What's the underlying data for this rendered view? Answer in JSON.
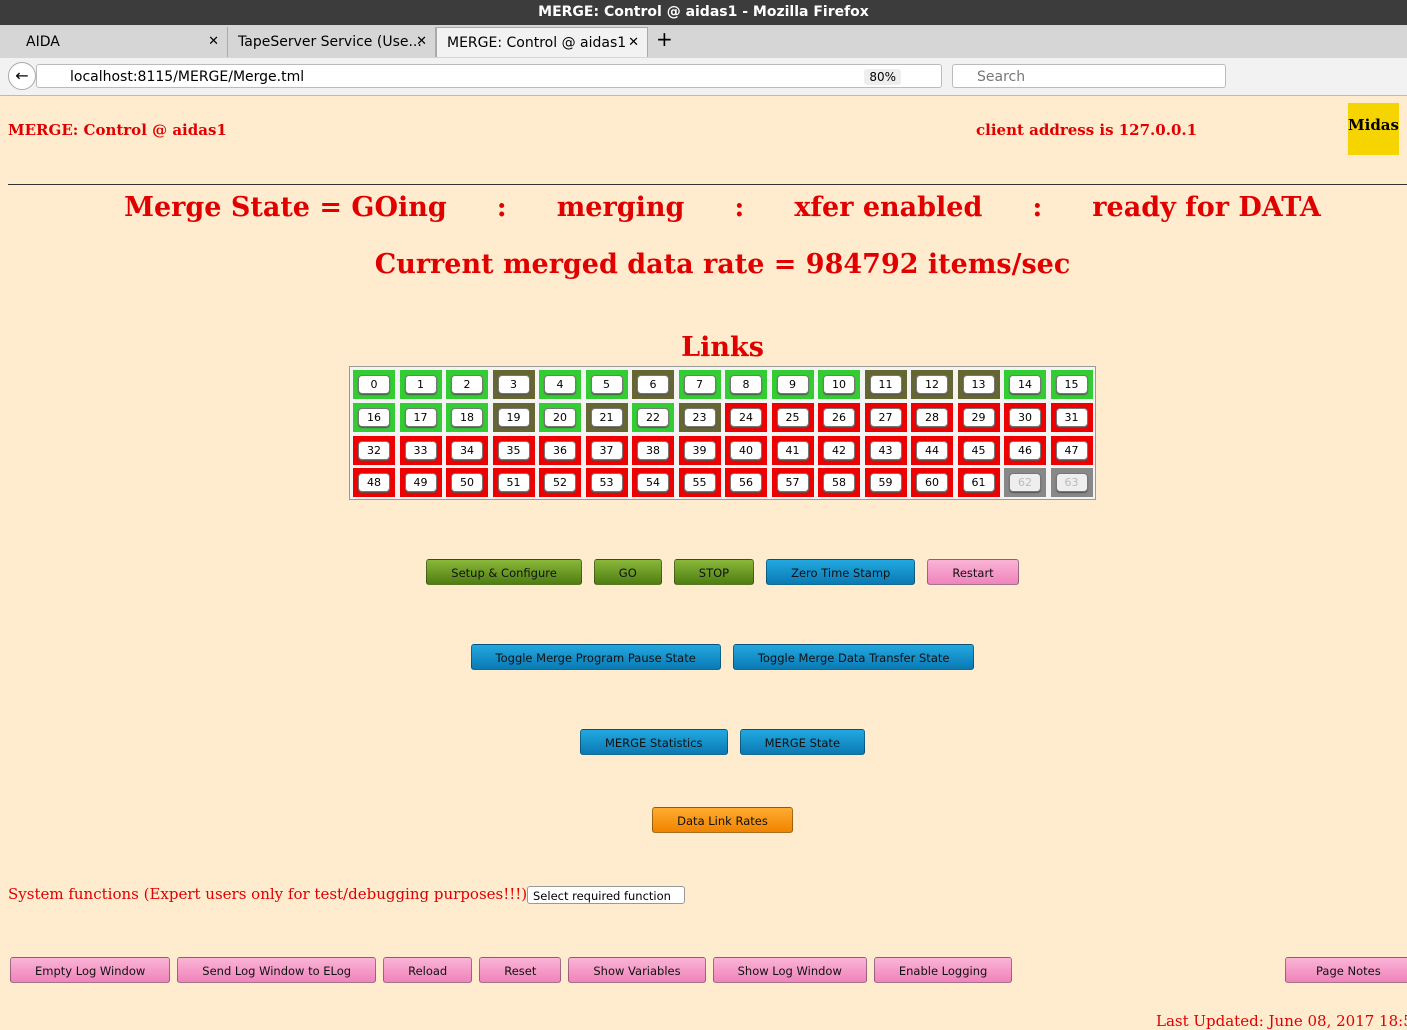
{
  "browser": {
    "window_title": "MERGE: Control @ aidas1 - Mozilla Firefox",
    "tabs": [
      "AIDA",
      "TapeServer Service (Use...",
      "MERGE: Control @ aidas1"
    ],
    "url": "localhost:8115/MERGE/Merge.tml",
    "zoom": "80%",
    "search": "Search"
  },
  "page": {
    "header_title": "MERGE: Control @ aidas1",
    "client_address": "client address is 127.0.0.1",
    "logo": "Midas",
    "state_parts": [
      "Merge State = GOing",
      ":",
      "merging",
      ":",
      "xfer enabled",
      ":",
      "ready for DATA"
    ],
    "rate": "Current merged data rate = 984792 items/sec",
    "links_title": "Links",
    "links": [
      {
        "label": "0",
        "color": "green"
      },
      {
        "label": "1",
        "color": "green"
      },
      {
        "label": "2",
        "color": "green"
      },
      {
        "label": "3",
        "color": "olive"
      },
      {
        "label": "4",
        "color": "green"
      },
      {
        "label": "5",
        "color": "green"
      },
      {
        "label": "6",
        "color": "olive"
      },
      {
        "label": "7",
        "color": "green"
      },
      {
        "label": "8",
        "color": "green"
      },
      {
        "label": "9",
        "color": "green"
      },
      {
        "label": "10",
        "color": "green"
      },
      {
        "label": "11",
        "color": "olive"
      },
      {
        "label": "12",
        "color": "olive"
      },
      {
        "label": "13",
        "color": "olive"
      },
      {
        "label": "14",
        "color": "green"
      },
      {
        "label": "15",
        "color": "green"
      },
      {
        "label": "16",
        "color": "green"
      },
      {
        "label": "17",
        "color": "green"
      },
      {
        "label": "18",
        "color": "green"
      },
      {
        "label": "19",
        "color": "olive"
      },
      {
        "label": "20",
        "color": "green"
      },
      {
        "label": "21",
        "color": "olive"
      },
      {
        "label": "22",
        "color": "green"
      },
      {
        "label": "23",
        "color": "olive"
      },
      {
        "label": "24",
        "color": "red"
      },
      {
        "label": "25",
        "color": "red"
      },
      {
        "label": "26",
        "color": "red"
      },
      {
        "label": "27",
        "color": "red"
      },
      {
        "label": "28",
        "color": "red"
      },
      {
        "label": "29",
        "color": "red"
      },
      {
        "label": "30",
        "color": "red"
      },
      {
        "label": "31",
        "color": "red"
      },
      {
        "label": "32",
        "color": "red"
      },
      {
        "label": "33",
        "color": "red"
      },
      {
        "label": "34",
        "color": "red"
      },
      {
        "label": "35",
        "color": "red"
      },
      {
        "label": "36",
        "color": "red"
      },
      {
        "label": "37",
        "color": "red"
      },
      {
        "label": "38",
        "color": "red"
      },
      {
        "label": "39",
        "color": "red"
      },
      {
        "label": "40",
        "color": "red"
      },
      {
        "label": "41",
        "color": "red"
      },
      {
        "label": "42",
        "color": "red"
      },
      {
        "label": "43",
        "color": "red"
      },
      {
        "label": "44",
        "color": "red"
      },
      {
        "label": "45",
        "color": "red"
      },
      {
        "label": "46",
        "color": "red"
      },
      {
        "label": "47",
        "color": "red"
      },
      {
        "label": "48",
        "color": "red"
      },
      {
        "label": "49",
        "color": "red"
      },
      {
        "label": "50",
        "color": "red"
      },
      {
        "label": "51",
        "color": "red"
      },
      {
        "label": "52",
        "color": "red"
      },
      {
        "label": "53",
        "color": "red"
      },
      {
        "label": "54",
        "color": "red"
      },
      {
        "label": "55",
        "color": "red"
      },
      {
        "label": "56",
        "color": "red"
      },
      {
        "label": "57",
        "color": "red"
      },
      {
        "label": "58",
        "color": "red"
      },
      {
        "label": "59",
        "color": "red"
      },
      {
        "label": "60",
        "color": "red"
      },
      {
        "label": "61",
        "color": "red"
      },
      {
        "label": "62",
        "color": "gray"
      },
      {
        "label": "63",
        "color": "gray"
      }
    ],
    "button_rows": [
      [
        {
          "label": "Setup & Configure",
          "color": "green"
        },
        {
          "label": "GO",
          "color": "green"
        },
        {
          "label": "STOP",
          "color": "green"
        },
        {
          "label": "Zero Time Stamp",
          "color": "blue"
        },
        {
          "label": "Restart",
          "color": "pink"
        }
      ],
      [
        {
          "label": "Toggle Merge Program Pause State",
          "color": "blue"
        },
        {
          "label": "Toggle Merge Data Transfer State",
          "color": "blue"
        }
      ],
      [
        {
          "label": "MERGE Statistics",
          "color": "blue"
        },
        {
          "label": "MERGE State",
          "color": "blue"
        }
      ],
      [
        {
          "label": "Data Link Rates",
          "color": "orange"
        }
      ]
    ],
    "system_functions": "System functions (Expert users only for test/debugging purposes!!!)",
    "select": "Select required function",
    "bottom_buttons": [
      "Empty Log Window",
      "Send Log Window to ELog",
      "Reload",
      "Reset",
      "Show Variables",
      "Show Log Window",
      "Enable Logging"
    ],
    "page_notes": "Page Notes",
    "last_updated": "Last Updated: June 08, 2017 18:5"
  }
}
